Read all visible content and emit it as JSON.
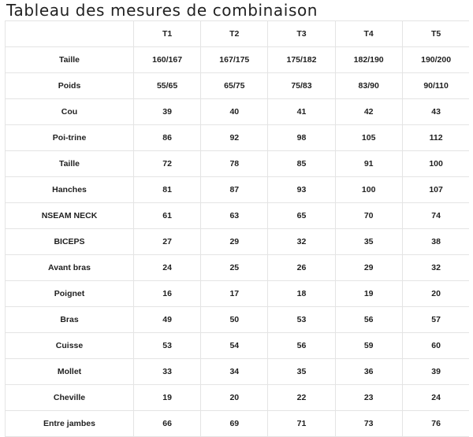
{
  "title": "Tableau des mesures de combinaison",
  "table": {
    "corner": "",
    "columns": [
      "T1",
      "T2",
      "T3",
      "T4",
      "T5"
    ],
    "rows": [
      {
        "label": "Taille",
        "values": [
          "160/167",
          "167/175",
          "175/182",
          "182/190",
          "190/200"
        ]
      },
      {
        "label": "Poids",
        "values": [
          "55/65",
          "65/75",
          "75/83",
          "83/90",
          "90/110"
        ]
      },
      {
        "label": "Cou",
        "values": [
          "39",
          "40",
          "41",
          "42",
          "43"
        ]
      },
      {
        "label": "Poi-trine",
        "values": [
          "86",
          "92",
          "98",
          "105",
          "112"
        ]
      },
      {
        "label": "Taille",
        "values": [
          "72",
          "78",
          "85",
          "91",
          "100"
        ]
      },
      {
        "label": "Hanches",
        "values": [
          "81",
          "87",
          "93",
          "100",
          "107"
        ]
      },
      {
        "label": "NSEAM NECK",
        "values": [
          "61",
          "63",
          "65",
          "70",
          "74"
        ]
      },
      {
        "label": "BICEPS",
        "values": [
          "27",
          "29",
          "32",
          "35",
          "38"
        ]
      },
      {
        "label": "Avant bras",
        "values": [
          "24",
          "25",
          "26",
          "29",
          "32"
        ]
      },
      {
        "label": "Poignet",
        "values": [
          "16",
          "17",
          "18",
          "19",
          "20"
        ]
      },
      {
        "label": "Bras",
        "values": [
          "49",
          "50",
          "53",
          "56",
          "57"
        ]
      },
      {
        "label": "Cuisse",
        "values": [
          "53",
          "54",
          "56",
          "59",
          "60"
        ]
      },
      {
        "label": "Mollet",
        "values": [
          "33",
          "34",
          "35",
          "36",
          "39"
        ]
      },
      {
        "label": "Cheville",
        "values": [
          "19",
          "20",
          "22",
          "23",
          "24"
        ]
      },
      {
        "label": "Entre jambes",
        "values": [
          "66",
          "69",
          "71",
          "73",
          "76"
        ]
      }
    ]
  }
}
